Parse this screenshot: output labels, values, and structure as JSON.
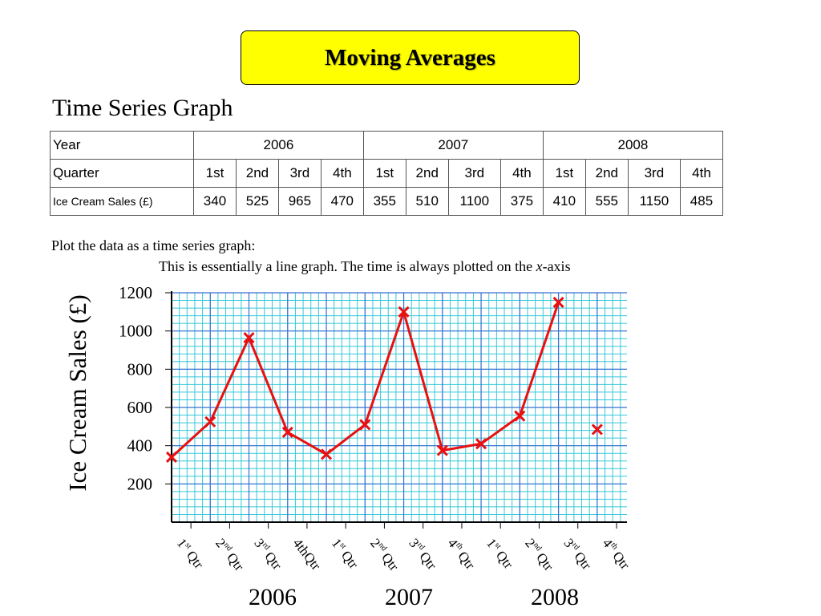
{
  "header": {
    "title": "Moving Averages"
  },
  "subtitle": "Time Series Graph",
  "table": {
    "year_label": "Year",
    "quarter_label": "Quarter",
    "sales_label": "Ice Cream Sales (£)",
    "years": [
      "2006",
      "2007",
      "2008"
    ],
    "quarters": [
      "1st",
      "2nd",
      "3rd",
      "4th",
      "1st",
      "2nd",
      "3rd",
      "4th",
      "1st",
      "2nd",
      "3rd",
      "4th"
    ],
    "sales": [
      "340",
      "525",
      "965",
      "470",
      "355",
      "510",
      "1100",
      "375",
      "410",
      "555",
      "1150",
      "485"
    ]
  },
  "instructions": {
    "line1": "Plot the data as a time series graph:",
    "line2_prefix": "This is essentially a line graph. The time is always plotted on the ",
    "line2_var": "x",
    "line2_suffix": "-axis"
  },
  "chart_data": {
    "type": "line",
    "ylabel": "Ice Cream Sales (£)",
    "ylim": [
      0,
      1200
    ],
    "yticks": [
      200,
      400,
      600,
      800,
      1000,
      1200
    ],
    "grid": true,
    "marker": "x",
    "colors": {
      "line": "#e81010",
      "grid_minor": "#35c8d8",
      "grid_major": "#3a6fd0",
      "axis": "#000000"
    },
    "x_tick_labels": [
      {
        "base": "1",
        "sup": "st",
        "rest": " Qtr"
      },
      {
        "base": "2",
        "sup": "nd",
        "rest": " Qtr"
      },
      {
        "base": "3",
        "sup": "rd",
        "rest": " Qtr"
      },
      {
        "base": "4thQtr",
        "sup": "",
        "rest": ""
      },
      {
        "base": "1",
        "sup": "st",
        "rest": " Qtr"
      },
      {
        "base": "2",
        "sup": "nd",
        "rest": " Qtr"
      },
      {
        "base": "3",
        "sup": "rd",
        "rest": " Qtr"
      },
      {
        "base": "4",
        "sup": "th",
        "rest": " Qtr"
      },
      {
        "base": "1",
        "sup": "st",
        "rest": " Qtr"
      },
      {
        "base": "2",
        "sup": "nd",
        "rest": " Qtr"
      },
      {
        "base": "3",
        "sup": "rd",
        "rest": " Qtr"
      },
      {
        "base": "4",
        "sup": "th",
        "rest": " Qtr"
      }
    ],
    "year_labels": [
      "2006",
      "2007",
      "2008"
    ],
    "series": [
      {
        "values": [
          340,
          525,
          965,
          470,
          355,
          510,
          1100,
          375,
          410,
          555,
          1150,
          485
        ]
      }
    ]
  }
}
